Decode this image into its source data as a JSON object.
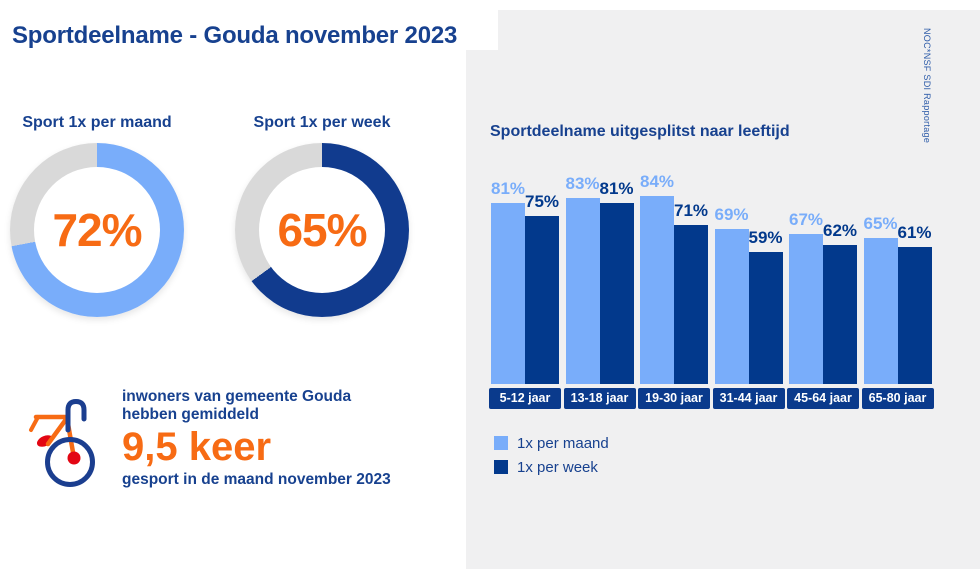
{
  "title": "Sportdeelname - Gouda november 2023",
  "branding": "NOC*NSF SDI Rapportage",
  "colors": {
    "navy": "#0a3a8c",
    "light_blue": "#79adfa",
    "donut_navy": "#113b8e",
    "orange": "#f76b14",
    "red": "#e30613",
    "text_blue": "#17418f",
    "donut_track": "#d9d9d9",
    "panel_bg": "#f0f0f1"
  },
  "fact": {
    "line1": "inwoners van gemeente Gouda",
    "line2": "hebben gemiddeld",
    "highlight": "9,5 keer",
    "line3": "gesport in de maand november 2023"
  },
  "chart_data": [
    {
      "type": "pie",
      "variant": "donut",
      "title": "Sport 1x per maand",
      "labels": [
        "sport minstens 1x per maand",
        "rest"
      ],
      "values": [
        72,
        28
      ],
      "percent": 72,
      "display_value": "72%",
      "ring_color": "#79adfa",
      "track_color": "#d9d9d9",
      "center_label_color": "#f76b14"
    },
    {
      "type": "pie",
      "variant": "donut",
      "title": "Sport 1x per week",
      "labels": [
        "sport minstens 1x per week",
        "rest"
      ],
      "values": [
        65,
        35
      ],
      "percent": 65,
      "display_value": "65%",
      "ring_color": "#113b8e",
      "track_color": "#d9d9d9",
      "center_label_color": "#f76b14"
    },
    {
      "type": "bar",
      "title": "Sportdeelname uitgesplitst naar leeftijd",
      "categories": [
        "5-12 jaar",
        "13-18 jaar",
        "19-30 jaar",
        "31-44 jaar",
        "45-64 jaar",
        "65-80 jaar"
      ],
      "series": [
        {
          "name": "1x per maand",
          "values": [
            81,
            83,
            84,
            69,
            67,
            65
          ],
          "color": "#79adfa"
        },
        {
          "name": "1x per week",
          "values": [
            75,
            81,
            71,
            59,
            62,
            61
          ],
          "color": "#02398c"
        }
      ],
      "value_suffix": "%",
      "ylim": [
        0,
        100
      ],
      "grid": false,
      "legend_position": "bottom-left"
    }
  ]
}
